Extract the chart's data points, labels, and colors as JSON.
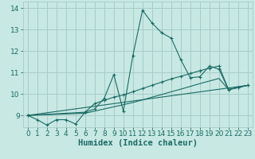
{
  "xlabel": "Humidex (Indice chaleur)",
  "xlim": [
    -0.5,
    23.5
  ],
  "ylim": [
    8.45,
    14.3
  ],
  "background_color": "#c8e8e4",
  "grid_color": "#a8ccc8",
  "line_color": "#1a6b64",
  "series": [
    {
      "x": [
        0,
        1,
        2,
        3,
        4,
        5,
        6,
        7,
        8,
        9,
        10,
        11,
        12,
        13,
        14,
        15,
        16,
        17,
        18,
        19,
        20,
        21,
        22,
        23
      ],
      "y": [
        9.0,
        8.8,
        8.55,
        8.8,
        8.8,
        8.6,
        9.15,
        9.3,
        9.8,
        10.9,
        9.2,
        11.8,
        13.9,
        13.3,
        12.85,
        12.6,
        11.6,
        10.75,
        10.8,
        11.3,
        11.15,
        10.2,
        10.3,
        10.4
      ],
      "marker": "+"
    },
    {
      "x": [
        0,
        6,
        7,
        8,
        9,
        10,
        11,
        12,
        13,
        14,
        15,
        16,
        17,
        18,
        19,
        20,
        21,
        22,
        23
      ],
      "y": [
        9.0,
        9.15,
        9.55,
        9.7,
        9.85,
        9.95,
        10.1,
        10.25,
        10.4,
        10.55,
        10.7,
        10.82,
        10.95,
        11.08,
        11.2,
        11.3,
        10.2,
        10.3,
        10.4
      ],
      "marker": "+"
    },
    {
      "x": [
        0,
        6,
        7,
        8,
        9,
        10,
        11,
        12,
        13,
        14,
        15,
        16,
        17,
        18,
        19,
        20,
        21,
        22,
        23
      ],
      "y": [
        9.0,
        9.1,
        9.2,
        9.3,
        9.4,
        9.5,
        9.6,
        9.72,
        9.85,
        9.97,
        10.1,
        10.22,
        10.35,
        10.48,
        10.6,
        10.72,
        10.2,
        10.3,
        10.4
      ],
      "marker": null
    },
    {
      "x": [
        0,
        23
      ],
      "y": [
        9.0,
        10.4
      ],
      "marker": null
    }
  ],
  "xticks": [
    0,
    1,
    2,
    3,
    4,
    5,
    6,
    7,
    8,
    9,
    10,
    11,
    12,
    13,
    14,
    15,
    16,
    17,
    18,
    19,
    20,
    21,
    22,
    23
  ],
  "yticks": [
    9,
    10,
    11,
    12,
    13,
    14
  ],
  "tick_fontsize": 6.5,
  "label_fontsize": 7.5
}
